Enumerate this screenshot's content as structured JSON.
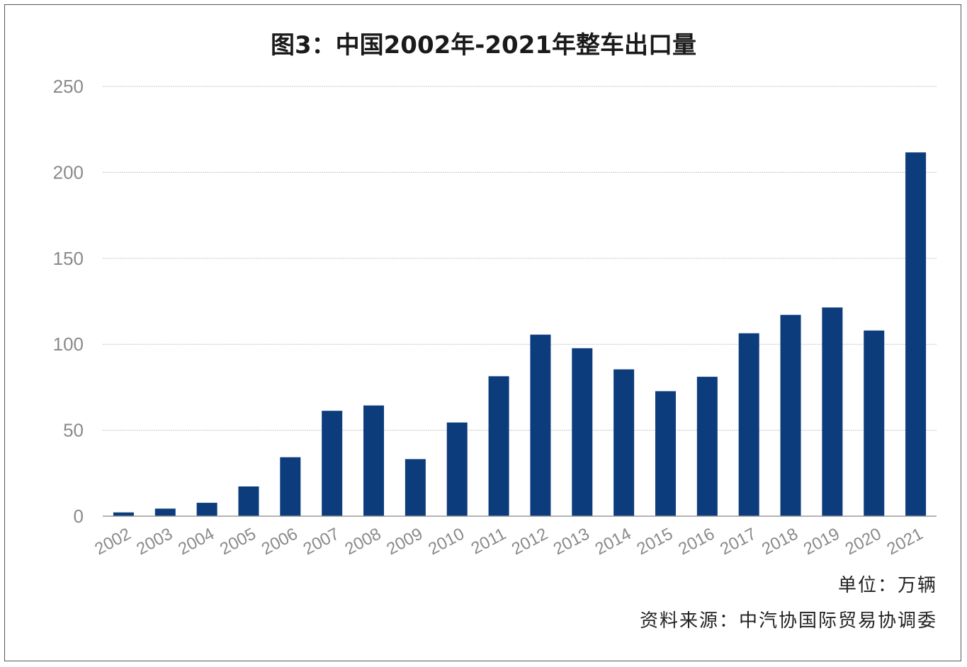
{
  "chart_data": {
    "type": "bar",
    "title": "图3：中国2002年-2021年整车出口量",
    "xlabel": "",
    "ylabel": "",
    "ylim": [
      0,
      250
    ],
    "yticks": [
      0,
      50,
      100,
      150,
      200,
      250
    ],
    "grid": true,
    "categories": [
      "2002",
      "2003",
      "2004",
      "2005",
      "2006",
      "2007",
      "2008",
      "2009",
      "2010",
      "2011",
      "2012",
      "2013",
      "2014",
      "2015",
      "2016",
      "2017",
      "2018",
      "2019",
      "2020",
      "2021"
    ],
    "values": [
      2.2,
      4.4,
      7.8,
      17.3,
      34.3,
      61.3,
      64.4,
      33.2,
      54.5,
      81.4,
      105.6,
      97.7,
      85.4,
      72.7,
      81.1,
      106.4,
      117.1,
      121.4,
      108.0,
      211.6
    ],
    "bar_color": "#0d3c7c",
    "unit": "单位：万辆",
    "source": "资料来源：中汽协国际贸易协调委"
  }
}
